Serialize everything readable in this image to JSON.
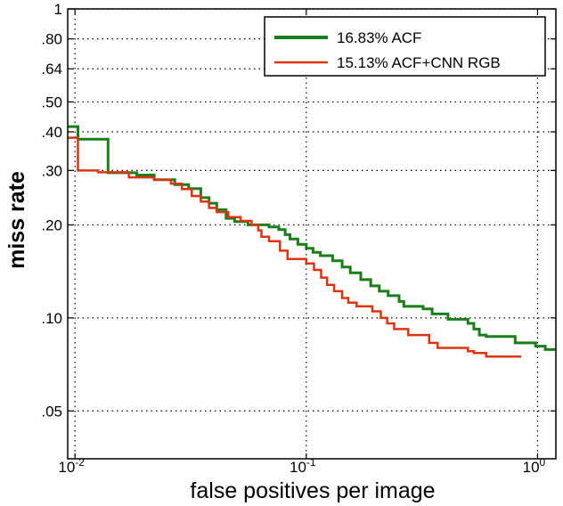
{
  "chart_data": {
    "type": "line",
    "title": "",
    "xlabel": "false positives per image",
    "ylabel": "miss rate",
    "xscale": "log",
    "yscale": "log",
    "xlim": [
      0.0093,
      1.2
    ],
    "ylim": [
      0.035,
      1.0
    ],
    "grid": true,
    "legend_position": "top-right",
    "x_ticks": [
      {
        "value": 0.01,
        "base": "10",
        "exp": "-2"
      },
      {
        "value": 0.1,
        "base": "10",
        "exp": "-1"
      },
      {
        "value": 1,
        "base": "10",
        "exp": "0"
      }
    ],
    "y_ticks": [
      {
        "value": 1.0,
        "label": "1"
      },
      {
        "value": 0.8,
        "label": ".80"
      },
      {
        "value": 0.64,
        "label": ".64"
      },
      {
        "value": 0.5,
        "label": ".50"
      },
      {
        "value": 0.4,
        "label": ".40"
      },
      {
        "value": 0.3,
        "label": ".30"
      },
      {
        "value": 0.2,
        "label": ".20"
      },
      {
        "value": 0.1,
        "label": ".10"
      },
      {
        "value": 0.05,
        "label": ".05"
      }
    ],
    "series": [
      {
        "name": "16.83% ACF",
        "color": "#1a7f1a",
        "points": [
          [
            0.0093,
            0.416
          ],
          [
            0.0103,
            0.416
          ],
          [
            0.0103,
            0.379
          ],
          [
            0.0139,
            0.379
          ],
          [
            0.0139,
            0.295
          ],
          [
            0.0185,
            0.295
          ],
          [
            0.0185,
            0.29
          ],
          [
            0.022,
            0.29
          ],
          [
            0.022,
            0.28
          ],
          [
            0.027,
            0.28
          ],
          [
            0.027,
            0.27
          ],
          [
            0.031,
            0.27
          ],
          [
            0.031,
            0.262
          ],
          [
            0.035,
            0.262
          ],
          [
            0.035,
            0.245
          ],
          [
            0.038,
            0.245
          ],
          [
            0.038,
            0.235
          ],
          [
            0.041,
            0.235
          ],
          [
            0.041,
            0.224
          ],
          [
            0.045,
            0.224
          ],
          [
            0.045,
            0.21
          ],
          [
            0.049,
            0.21
          ],
          [
            0.049,
            0.205
          ],
          [
            0.056,
            0.205
          ],
          [
            0.056,
            0.2
          ],
          [
            0.069,
            0.2
          ],
          [
            0.069,
            0.197
          ],
          [
            0.076,
            0.197
          ],
          [
            0.076,
            0.193
          ],
          [
            0.081,
            0.193
          ],
          [
            0.081,
            0.186
          ],
          [
            0.085,
            0.186
          ],
          [
            0.085,
            0.18
          ],
          [
            0.092,
            0.18
          ],
          [
            0.092,
            0.173
          ],
          [
            0.1,
            0.173
          ],
          [
            0.1,
            0.168
          ],
          [
            0.107,
            0.168
          ],
          [
            0.107,
            0.163
          ],
          [
            0.115,
            0.163
          ],
          [
            0.115,
            0.159
          ],
          [
            0.13,
            0.159
          ],
          [
            0.13,
            0.153
          ],
          [
            0.143,
            0.153
          ],
          [
            0.143,
            0.146
          ],
          [
            0.155,
            0.146
          ],
          [
            0.155,
            0.14
          ],
          [
            0.172,
            0.14
          ],
          [
            0.172,
            0.133
          ],
          [
            0.19,
            0.133
          ],
          [
            0.19,
            0.127
          ],
          [
            0.207,
            0.127
          ],
          [
            0.207,
            0.122
          ],
          [
            0.226,
            0.122
          ],
          [
            0.226,
            0.118
          ],
          [
            0.252,
            0.118
          ],
          [
            0.252,
            0.113
          ],
          [
            0.264,
            0.113
          ],
          [
            0.264,
            0.109
          ],
          [
            0.32,
            0.109
          ],
          [
            0.32,
            0.107
          ],
          [
            0.35,
            0.107
          ],
          [
            0.35,
            0.103
          ],
          [
            0.41,
            0.103
          ],
          [
            0.41,
            0.099
          ],
          [
            0.5,
            0.099
          ],
          [
            0.5,
            0.096
          ],
          [
            0.53,
            0.096
          ],
          [
            0.53,
            0.092
          ],
          [
            0.56,
            0.092
          ],
          [
            0.56,
            0.088
          ],
          [
            0.6,
            0.088
          ],
          [
            0.6,
            0.087
          ],
          [
            0.8,
            0.087
          ],
          [
            0.8,
            0.083
          ],
          [
            0.98,
            0.083
          ],
          [
            0.98,
            0.081
          ],
          [
            1.08,
            0.081
          ],
          [
            1.08,
            0.079
          ],
          [
            1.2,
            0.079
          ]
        ]
      },
      {
        "name": "15.13% ACF+CNN RGB",
        "color": "#dd3311",
        "points": [
          [
            0.0093,
            0.383
          ],
          [
            0.0103,
            0.383
          ],
          [
            0.0103,
            0.3
          ],
          [
            0.0126,
            0.3
          ],
          [
            0.0126,
            0.296
          ],
          [
            0.0171,
            0.296
          ],
          [
            0.0171,
            0.285
          ],
          [
            0.022,
            0.285
          ],
          [
            0.022,
            0.28
          ],
          [
            0.026,
            0.28
          ],
          [
            0.026,
            0.272
          ],
          [
            0.029,
            0.272
          ],
          [
            0.029,
            0.261
          ],
          [
            0.032,
            0.261
          ],
          [
            0.032,
            0.248
          ],
          [
            0.035,
            0.248
          ],
          [
            0.035,
            0.238
          ],
          [
            0.038,
            0.238
          ],
          [
            0.038,
            0.227
          ],
          [
            0.041,
            0.227
          ],
          [
            0.041,
            0.22
          ],
          [
            0.046,
            0.22
          ],
          [
            0.046,
            0.212
          ],
          [
            0.052,
            0.212
          ],
          [
            0.052,
            0.206
          ],
          [
            0.058,
            0.206
          ],
          [
            0.058,
            0.2
          ],
          [
            0.062,
            0.2
          ],
          [
            0.062,
            0.192
          ],
          [
            0.064,
            0.192
          ],
          [
            0.064,
            0.183
          ],
          [
            0.069,
            0.183
          ],
          [
            0.069,
            0.177
          ],
          [
            0.077,
            0.177
          ],
          [
            0.077,
            0.165
          ],
          [
            0.083,
            0.165
          ],
          [
            0.083,
            0.155
          ],
          [
            0.1,
            0.155
          ],
          [
            0.1,
            0.15
          ],
          [
            0.108,
            0.15
          ],
          [
            0.108,
            0.143
          ],
          [
            0.116,
            0.143
          ],
          [
            0.116,
            0.135
          ],
          [
            0.123,
            0.135
          ],
          [
            0.123,
            0.128
          ],
          [
            0.132,
            0.128
          ],
          [
            0.132,
            0.122
          ],
          [
            0.143,
            0.122
          ],
          [
            0.143,
            0.116
          ],
          [
            0.152,
            0.116
          ],
          [
            0.152,
            0.112
          ],
          [
            0.165,
            0.112
          ],
          [
            0.165,
            0.109
          ],
          [
            0.193,
            0.109
          ],
          [
            0.193,
            0.105
          ],
          [
            0.21,
            0.105
          ],
          [
            0.21,
            0.1
          ],
          [
            0.224,
            0.1
          ],
          [
            0.224,
            0.096
          ],
          [
            0.24,
            0.096
          ],
          [
            0.24,
            0.092
          ],
          [
            0.276,
            0.092
          ],
          [
            0.276,
            0.088
          ],
          [
            0.34,
            0.088
          ],
          [
            0.34,
            0.083
          ],
          [
            0.37,
            0.083
          ],
          [
            0.37,
            0.08
          ],
          [
            0.5,
            0.08
          ],
          [
            0.5,
            0.078
          ],
          [
            0.53,
            0.078
          ],
          [
            0.53,
            0.077
          ],
          [
            0.6,
            0.077
          ],
          [
            0.6,
            0.075
          ],
          [
            0.85,
            0.075
          ]
        ]
      }
    ]
  }
}
